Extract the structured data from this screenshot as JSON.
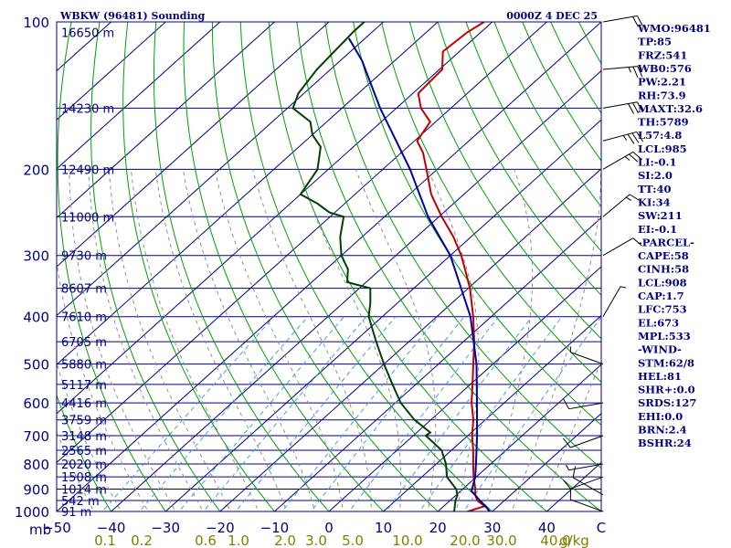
{
  "header": {
    "station_title": "WBKW (96481) Sounding",
    "time_title": "0000Z  4 DEC 25"
  },
  "chart_data": {
    "type": "line",
    "diagram": "skew-t log-p",
    "pressure_unit_label": "mb",
    "mixing_ratio_unit_label": "g/kg",
    "pressure_range_mb": [
      1000,
      100
    ],
    "temperature_range_c": [
      -50,
      50
    ],
    "pressure_ticks": [
      "100",
      "200",
      "300",
      "400",
      "500",
      "600",
      "700",
      "800",
      "900",
      "1000"
    ],
    "temperature_ticks": [
      "−50",
      "−40",
      "−30",
      "−20",
      "−10",
      "0",
      "10",
      "20",
      "30",
      "40",
      "C"
    ],
    "mixing_ratio_ticks": [
      "0.1",
      "0.2",
      "0.6",
      "1.0",
      "2.0",
      "3.0",
      "5.0",
      "10.0",
      "20.0",
      "30.0",
      "40.0"
    ],
    "height_labels": [
      {
        "p": 105,
        "text": "16650 m"
      },
      {
        "p": 150,
        "text": "14230 m"
      },
      {
        "p": 200,
        "text": "12490 m"
      },
      {
        "p": 250,
        "text": "11000 m"
      },
      {
        "p": 300,
        "text": "9730 m"
      },
      {
        "p": 350,
        "text": "8607 m"
      },
      {
        "p": 400,
        "text": "7610 m"
      },
      {
        "p": 450,
        "text": "6705 m"
      },
      {
        "p": 500,
        "text": "5880 m"
      },
      {
        "p": 550,
        "text": "5117 m"
      },
      {
        "p": 600,
        "text": "4416 m"
      },
      {
        "p": 650,
        "text": "3759 m"
      },
      {
        "p": 700,
        "text": "3148 m"
      },
      {
        "p": 750,
        "text": "2565 m"
      },
      {
        "p": 800,
        "text": "2020 m"
      },
      {
        "p": 850,
        "text": "1508 m"
      },
      {
        "p": 900,
        "text": "1014 m"
      },
      {
        "p": 950,
        "text": "542 m"
      },
      {
        "p": 1000,
        "text": "91 m"
      }
    ],
    "series": [
      {
        "key": "temperature",
        "color": "#c00000",
        "points": [
          [
            1005,
            25.5
          ],
          [
            1000,
            25.5
          ],
          [
            975,
            27.5
          ],
          [
            950,
            25.0
          ],
          [
            925,
            23.5
          ],
          [
            900,
            22.3
          ],
          [
            850,
            19.5
          ],
          [
            800,
            16.8
          ],
          [
            750,
            14.0
          ],
          [
            700,
            10.8
          ],
          [
            650,
            7.8
          ],
          [
            600,
            4.0
          ],
          [
            550,
            0.4
          ],
          [
            500,
            -3.6
          ],
          [
            450,
            -8.0
          ],
          [
            400,
            -13.3
          ],
          [
            350,
            -19.7
          ],
          [
            320,
            -24.5
          ],
          [
            300,
            -28.0
          ],
          [
            275,
            -33.2
          ],
          [
            250,
            -39.5
          ],
          [
            225,
            -46.0
          ],
          [
            200,
            -52.0
          ],
          [
            185,
            -56.0
          ],
          [
            175,
            -59.5
          ],
          [
            160,
            -61.0
          ],
          [
            150,
            -65.5
          ],
          [
            140,
            -69.0
          ],
          [
            125,
            -69.5
          ],
          [
            115,
            -73.0
          ],
          [
            105,
            -72.5
          ],
          [
            100,
            -71.5
          ]
        ]
      },
      {
        "key": "dewpoint",
        "color": "#004000",
        "points": [
          [
            1005,
            22.5
          ],
          [
            1000,
            23.0
          ],
          [
            950,
            21.0
          ],
          [
            925,
            20.2
          ],
          [
            900,
            18.8
          ],
          [
            850,
            14.6
          ],
          [
            800,
            11.8
          ],
          [
            750,
            8.2
          ],
          [
            700,
            2.3
          ],
          [
            690,
            2.5
          ],
          [
            650,
            -3.0
          ],
          [
            600,
            -9.0
          ],
          [
            550,
            -14.3
          ],
          [
            500,
            -20.0
          ],
          [
            450,
            -26.0
          ],
          [
            400,
            -32.5
          ],
          [
            375,
            -35.0
          ],
          [
            350,
            -38.0
          ],
          [
            340,
            -43.5
          ],
          [
            320,
            -46.0
          ],
          [
            300,
            -50.0
          ],
          [
            275,
            -54.0
          ],
          [
            250,
            -57.5
          ],
          [
            245,
            -61.0
          ],
          [
            235,
            -65.0
          ],
          [
            225,
            -70.0
          ],
          [
            200,
            -72.0
          ],
          [
            180,
            -76.0
          ],
          [
            170,
            -80.0
          ],
          [
            160,
            -83.0
          ],
          [
            150,
            -89.0
          ],
          [
            140,
            -91.0
          ],
          [
            125,
            -92.5
          ],
          [
            105,
            -93.5
          ],
          [
            100,
            -93.5
          ]
        ]
      },
      {
        "key": "parcel",
        "color": "#0000a0",
        "points": [
          [
            1000,
            29.5
          ],
          [
            980,
            28.0
          ],
          [
            950,
            25.5
          ],
          [
            908,
            22.0
          ],
          [
            850,
            19.8
          ],
          [
            800,
            17.3
          ],
          [
            700,
            11.7
          ],
          [
            600,
            5.0
          ],
          [
            500,
            -3.0
          ],
          [
            400,
            -13.8
          ],
          [
            300,
            -30.0
          ],
          [
            250,
            -42.0
          ],
          [
            200,
            -55.0
          ],
          [
            150,
            -73.0
          ],
          [
            120,
            -86.0
          ],
          [
            108,
            -93.0
          ]
        ]
      }
    ],
    "wind_barbs": [
      {
        "p": 100,
        "dir": 80,
        "spd": 20
      },
      {
        "p": 125,
        "dir": 85,
        "spd": 25
      },
      {
        "p": 150,
        "dir": 80,
        "spd": 30
      },
      {
        "p": 175,
        "dir": 75,
        "spd": 35
      },
      {
        "p": 200,
        "dir": 60,
        "spd": 25
      },
      {
        "p": 250,
        "dir": 50,
        "spd": 15
      },
      {
        "p": 300,
        "dir": 60,
        "spd": 10
      },
      {
        "p": 400,
        "dir": 30,
        "spd": 5
      },
      {
        "p": 500,
        "dir": 290,
        "spd": 5
      },
      {
        "p": 600,
        "dir": 260,
        "spd": 10
      },
      {
        "p": 700,
        "dir": 250,
        "spd": 10
      },
      {
        "p": 800,
        "dir": 260,
        "spd": 5
      },
      {
        "p": 850,
        "dir": 250,
        "spd": 10
      },
      {
        "p": 925,
        "dir": 300,
        "spd": 10
      },
      {
        "p": 1000,
        "dir": 290,
        "spd": 10
      }
    ]
  },
  "indices": [
    "WMO:96481",
    "TP:85",
    "FRZ:541",
    "WB0:576",
    "PW:2.21",
    "RH:73.9",
    "MAXT:32.6",
    "TH:5789",
    "L57:4.8",
    "LCL:985",
    "LI:-0.1",
    "SI:2.0",
    "TT:40",
    "KI:34",
    "SW:211",
    "EI:-0.1",
    "-PARCEL-",
    "CAPE:58",
    "CINH:58",
    "LCL:908",
    "CAP:1.7",
    "LFC:753",
    "EL:673",
    "MPL:533",
    "-WIND-",
    "STM:62/8",
    "HEL:81",
    "SHR+:0.0",
    "SRDS:127",
    "EHI:0.0",
    "BRN:2.4",
    "BSHR:24"
  ]
}
